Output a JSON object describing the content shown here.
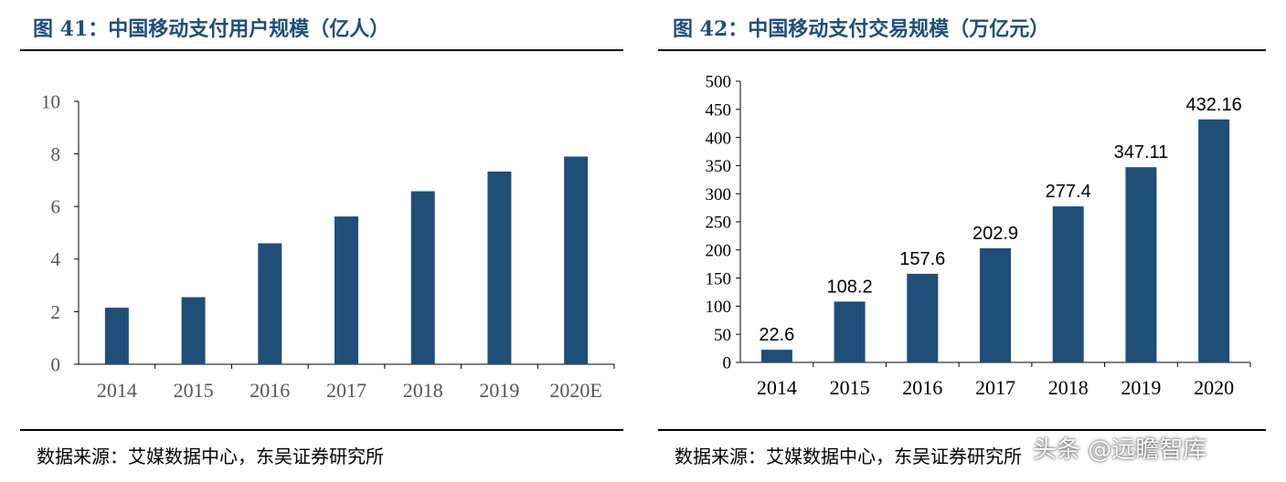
{
  "panels": [
    {
      "title": "图 41：中国移动支付用户规模（亿人）",
      "source": "数据来源：艾媒数据中心，东吴证券研究所",
      "chart_data": {
        "type": "bar",
        "title": "中国移动支付用户规模（亿人）",
        "categories": [
          "2014",
          "2015",
          "2016",
          "2017",
          "2018",
          "2019",
          "2020E"
        ],
        "values": [
          2.15,
          2.55,
          4.6,
          5.62,
          6.58,
          7.33,
          7.9
        ],
        "ylim": [
          0,
          10
        ],
        "yticks": [
          0,
          2,
          4,
          6,
          8,
          10
        ],
        "xlabel": "",
        "ylabel": "",
        "data_labels": false,
        "grid": false,
        "bar_color": "#1f4e79"
      }
    },
    {
      "title": "图 42：中国移动支付交易规模（万亿元）",
      "source": "数据来源：艾媒数据中心，东吴证券研究所",
      "chart_data": {
        "type": "bar",
        "title": "中国移动支付交易规模（万亿元）",
        "categories": [
          "2014",
          "2015",
          "2016",
          "2017",
          "2018",
          "2019",
          "2020"
        ],
        "values": [
          22.6,
          108.2,
          157.6,
          202.9,
          277.4,
          347.11,
          432.16
        ],
        "value_labels": [
          "22.6",
          "108.2",
          "157.6",
          "202.9",
          "277.4",
          "347.11",
          "432.16"
        ],
        "ylim": [
          0,
          500
        ],
        "yticks": [
          0,
          50,
          100,
          150,
          200,
          250,
          300,
          350,
          400,
          450,
          500
        ],
        "xlabel": "",
        "ylabel": "",
        "data_labels": true,
        "grid": false,
        "bar_color": "#1f4e79"
      }
    }
  ],
  "watermark": "头条 @远瞻智库"
}
